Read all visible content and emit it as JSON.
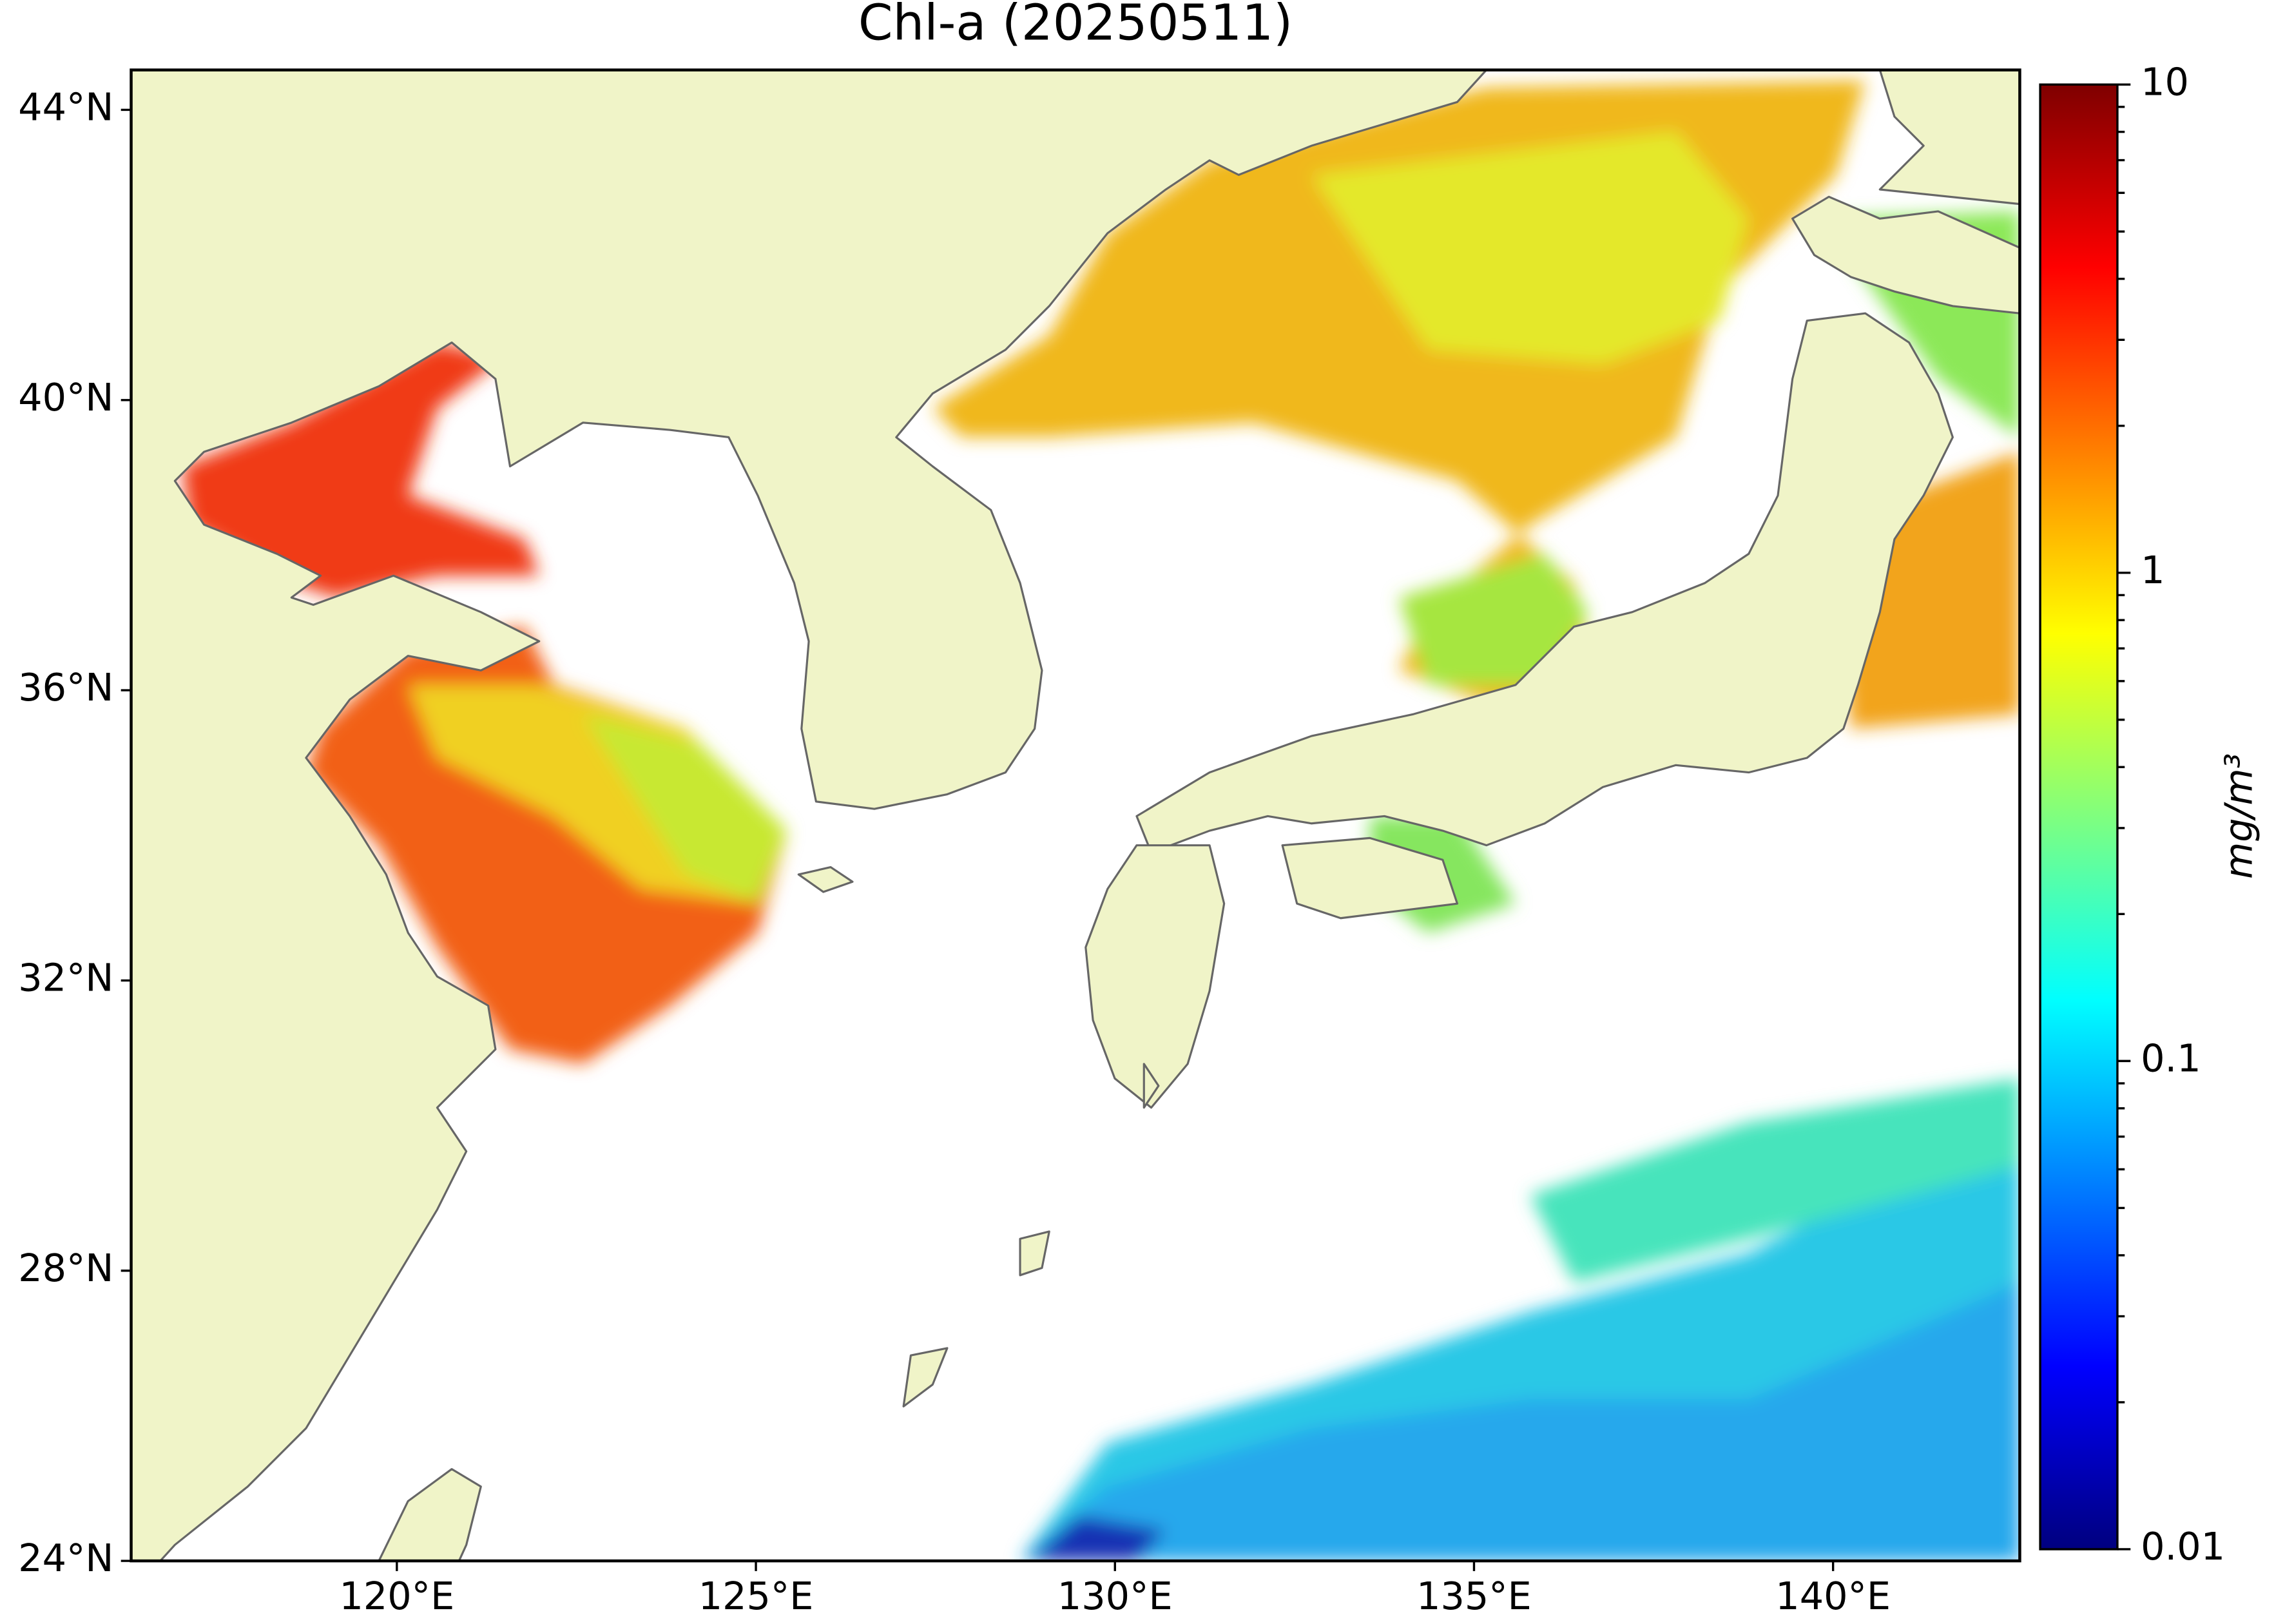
{
  "chart_data": {
    "type": "map",
    "title": "Chl-a (20250511)",
    "xlim": [
      116.3,
      142.6
    ],
    "ylim": [
      24,
      44.55
    ],
    "xticks": [
      {
        "value": 120,
        "label": "120°E"
      },
      {
        "value": 125,
        "label": "125°E"
      },
      {
        "value": 130,
        "label": "130°E"
      },
      {
        "value": 135,
        "label": "135°E"
      },
      {
        "value": 140,
        "label": "140°E"
      }
    ],
    "yticks": [
      {
        "value": 24,
        "label": "24°N"
      },
      {
        "value": 28,
        "label": "28°N"
      },
      {
        "value": 32,
        "label": "32°N"
      },
      {
        "value": 36,
        "label": "36°N"
      },
      {
        "value": 40,
        "label": "40°N"
      },
      {
        "value": 44,
        "label": "44°N"
      }
    ],
    "colorbar": {
      "label": "mg/m³",
      "colormap": "jet",
      "log": true,
      "lim": [
        0.01,
        10
      ],
      "ticks": [
        0.01,
        0.1,
        1,
        10
      ],
      "minor_ticks": [
        0.02,
        0.03,
        0.04,
        0.05,
        0.06,
        0.07,
        0.08,
        0.09,
        0.2,
        0.3,
        0.4,
        0.5,
        0.6,
        0.7,
        0.8,
        0.9,
        2,
        3,
        4,
        5,
        6,
        7,
        8,
        9
      ]
    }
  }
}
